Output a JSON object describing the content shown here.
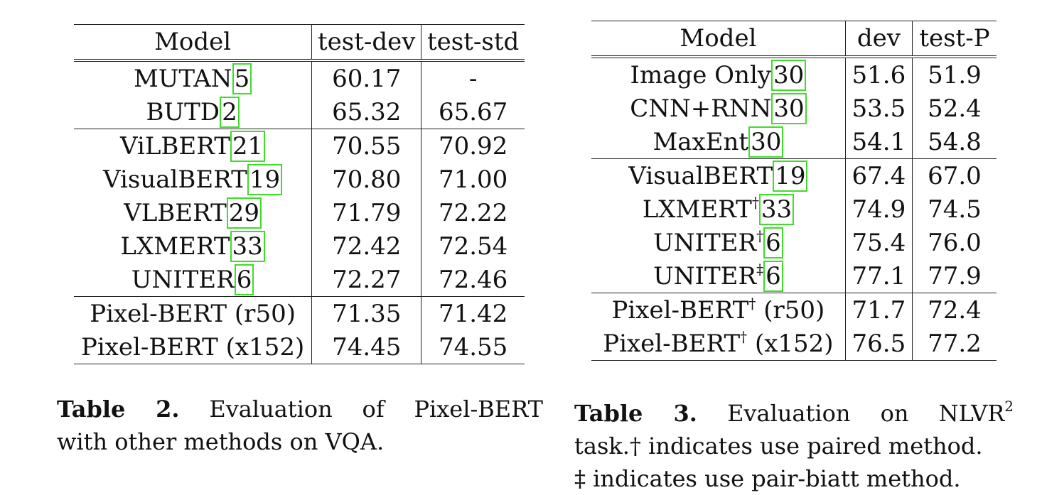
{
  "table2": {
    "headers": [
      "Model",
      "test-dev",
      "test-std"
    ],
    "groups": [
      [
        {
          "model": "MUTAN",
          "cite": "5",
          "dev": "60.17",
          "std": "-"
        },
        {
          "model": "BUTD",
          "cite": "2",
          "dev": "65.32",
          "std": "65.67"
        }
      ],
      [
        {
          "model": "ViLBERT",
          "cite": "21",
          "dev": "70.55",
          "std": "70.92"
        },
        {
          "model": "VisualBERT",
          "cite": "19",
          "dev": "70.80",
          "std": "71.00"
        },
        {
          "model": "VLBERT",
          "cite": "29",
          "dev": "71.79",
          "std": "72.22"
        },
        {
          "model": "LXMERT",
          "cite": "33",
          "dev": "72.42",
          "std": "72.54"
        },
        {
          "model": "UNITER",
          "cite": "6",
          "dev": "72.27",
          "std": "72.46"
        }
      ],
      [
        {
          "model": "Pixel-BERT (r50)",
          "dev": "71.35",
          "std": "71.42"
        },
        {
          "model": "Pixel-BERT (x152)",
          "dev": "74.45",
          "std": "74.55",
          "bold": true
        }
      ]
    ],
    "caption_label": "Table 2.",
    "caption_line1": "Evaluation of Pixel-BERT",
    "caption_line2": "with other methods on VQA."
  },
  "table3": {
    "headers": [
      "Model",
      "dev",
      "test-P"
    ],
    "groups": [
      [
        {
          "model": "Image Only",
          "cite": "30",
          "dev": "51.6",
          "test": "51.9"
        },
        {
          "model": "CNN+RNN",
          "cite": "30",
          "dev": "53.5",
          "test": "52.4"
        },
        {
          "model": "MaxEnt",
          "cite": "30",
          "dev": "54.1",
          "test": "54.8"
        }
      ],
      [
        {
          "model": "VisualBERT",
          "cite": "19",
          "dev": "67.4",
          "test": "67.0"
        },
        {
          "model": "LXMERT",
          "mark": "†",
          "cite": "33",
          "dev": "74.9",
          "test": "74.5"
        },
        {
          "model": "UNITER",
          "mark": "†",
          "cite": "6",
          "dev": "75.4",
          "test": "76.0"
        },
        {
          "model": "UNITER",
          "mark": "‡",
          "cite": "6",
          "dev": "77.1",
          "test": "77.9",
          "bold": true
        }
      ],
      [
        {
          "model": "Pixel-BERT",
          "mark": "†",
          "suffix": "(r50)",
          "dev": "71.7",
          "test": "72.4"
        },
        {
          "model": "Pixel-BERT",
          "mark": "†",
          "suffix": "(x152)",
          "dev": "76.5",
          "test": "77.2"
        }
      ]
    ],
    "caption_label": "Table 3.",
    "caption_line1_text": "Evaluation on NLVR",
    "caption_line1_sup": "2",
    "caption_line2": "task.† indicates use paired method.",
    "caption_line3": "‡ indicates use pair-biatt method."
  }
}
